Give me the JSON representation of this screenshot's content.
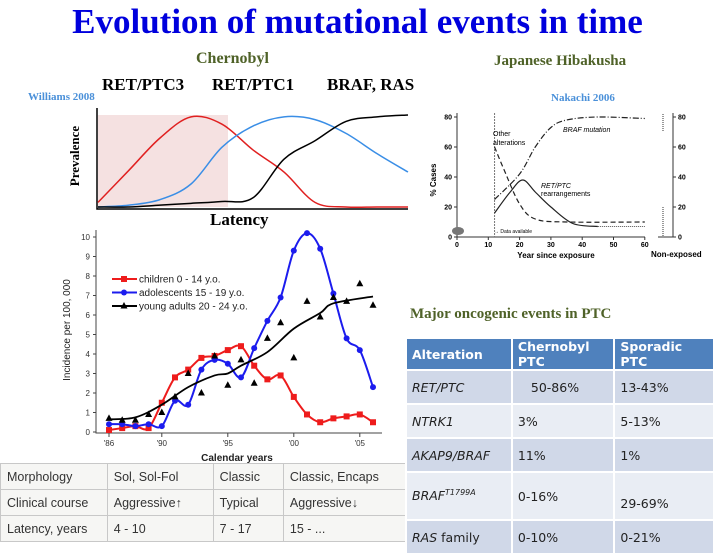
{
  "title": "Evolution of mutational events in time",
  "chernobyl": {
    "label": "Chernobyl",
    "genes": [
      "RET/PTC3",
      "RET/PTC1",
      "BRAF, RAS"
    ],
    "citation": "Williams 2008"
  },
  "japan": {
    "label": "Japanese Hibakusha",
    "citation": "Nakachi 2006"
  },
  "chart_data": [
    {
      "type": "line",
      "title": "",
      "xlabel": "Latency",
      "ylabel": "Prevalence",
      "shaded_region": "early latency (RET/PTC3 phase)",
      "x": [
        0,
        1,
        2,
        3,
        4,
        5,
        6,
        7,
        8,
        9,
        10
      ],
      "series": [
        {
          "name": "RET/PTC3",
          "color": "#e02020",
          "values": [
            0.05,
            0.4,
            0.75,
            0.98,
            0.9,
            0.62,
            0.38,
            0.05,
            0,
            0,
            0
          ]
        },
        {
          "name": "RET/PTC1",
          "color": "#3a8ee6",
          "values": [
            0,
            0.02,
            0.08,
            0.25,
            0.65,
            0.88,
            0.98,
            0.95,
            0.8,
            0.58,
            0.38
          ]
        },
        {
          "name": "BRAF, RAS",
          "color": "#000000",
          "values": [
            0,
            0,
            0.02,
            0.04,
            0.06,
            0.1,
            0.52,
            0.72,
            0.93,
            0.98,
            1.0
          ]
        }
      ]
    },
    {
      "type": "line",
      "title": "",
      "xlabel": "Year since exposure",
      "ylabel": "% Cases",
      "xlim": [
        0,
        60
      ],
      "ylim": [
        0,
        85
      ],
      "xticks": [
        0,
        10,
        20,
        30,
        40,
        50,
        60
      ],
      "yticks": [
        0,
        20,
        40,
        60,
        80
      ],
      "right_panel_label": "Non-exposed",
      "annotations": [
        "Other alterations",
        "BRAF mutation",
        "RET/PTC rearrangements",
        "Data available"
      ],
      "series": [
        {
          "name": "BRAF mutation",
          "style": "dash-dot",
          "x": [
            12,
            20,
            25,
            30,
            35,
            45,
            60
          ],
          "y": [
            25,
            42,
            60,
            73,
            78,
            80,
            79
          ]
        },
        {
          "name": "RET/PTC rearrangements",
          "style": "solid",
          "x": [
            12,
            17,
            21,
            25,
            30,
            37,
            45
          ],
          "y": [
            16,
            30,
            38,
            30,
            20,
            9,
            7
          ]
        },
        {
          "name": "Other alterations",
          "style": "dashed",
          "x": [
            12,
            15,
            20,
            25,
            35,
            60
          ],
          "y": [
            60,
            45,
            22,
            12,
            10,
            10
          ]
        }
      ],
      "non_exposed_ranges": [
        {
          "name": "BRAF mutation",
          "range": [
            70,
            82
          ]
        },
        {
          "name": "RET/PTC rearrangements",
          "range": [
            0,
            20
          ]
        }
      ]
    },
    {
      "type": "line",
      "title": "",
      "xlabel": "Calendar years",
      "ylabel": "Incidence per 100, 000",
      "xlim": [
        1986,
        2006
      ],
      "ylim": [
        0,
        10.5
      ],
      "xtick_labels": [
        "'86",
        "'90",
        "'95",
        "'00",
        "'05"
      ],
      "yticks": [
        0,
        1,
        2,
        3,
        4,
        5,
        6,
        7,
        8,
        9,
        10
      ],
      "legend": "top-left",
      "x": [
        1986,
        1987,
        1988,
        1989,
        1990,
        1991,
        1992,
        1993,
        1994,
        1995,
        1996,
        1997,
        1998,
        1999,
        2000,
        2001,
        2002,
        2003,
        2004,
        2005,
        2006
      ],
      "series": [
        {
          "name": "children 0 - 14 y.o.",
          "color": "#ee1c1c",
          "marker": "square",
          "values": [
            0.1,
            0.2,
            0.3,
            0.2,
            1.5,
            2.8,
            3.2,
            3.8,
            3.9,
            4.2,
            4.4,
            3.4,
            2.7,
            2.9,
            1.8,
            0.9,
            0.5,
            0.7,
            0.8,
            0.9,
            0.5
          ]
        },
        {
          "name": "adolescents 15 - 19 y.o.",
          "color": "#1c1cee",
          "marker": "circle",
          "values": [
            0.4,
            0.4,
            0.3,
            0.4,
            0.3,
            1.6,
            1.4,
            3.2,
            3.7,
            3.5,
            2.8,
            4.3,
            5.7,
            6.9,
            9.3,
            10.2,
            9.4,
            7.1,
            4.8,
            4.2,
            2.3
          ]
        },
        {
          "name": "young adults 20 - 24 y.o.",
          "color": "#000000",
          "marker": "triangle",
          "values": [
            0.7,
            0.6,
            0.6,
            0.9,
            1.0,
            1.8,
            3.0,
            2.0,
            3.9,
            2.4,
            3.7,
            2.5,
            4.8,
            5.6,
            3.8,
            6.7,
            5.9,
            6.9,
            6.7,
            7.6,
            6.5
          ],
          "trend": {
            "x": [
              1986,
              1988,
              1990,
              1992,
              1994,
              1995,
              1996,
              1998,
              2000,
              2002,
              2003,
              2006
            ],
            "y": [
              0.65,
              0.75,
              1.4,
              2.3,
              2.9,
              3.0,
              3.4,
              4.1,
              5.3,
              6.1,
              6.6,
              6.95
            ]
          }
        }
      ]
    }
  ],
  "latency_table": {
    "rows": [
      [
        "Morphology",
        "Sol, Sol-Fol",
        "Classic",
        "Classic, Encaps"
      ],
      [
        "Clinical course",
        "Aggressive↑",
        "Typical",
        "Aggressive↓"
      ],
      [
        "Latency, years",
        "4 - 10",
        "7 - 17",
        "15 - ..."
      ]
    ]
  },
  "ptc_table": {
    "title": "Major oncogenic events in PTC",
    "headers": [
      "Alteration",
      "Chernobyl PTC",
      "Sporadic PTC"
    ],
    "rows": [
      {
        "alteration": "RET/PTC",
        "sup": "",
        "rest": "",
        "chernobyl": "50-86%",
        "sporadic": "13-43%"
      },
      {
        "alteration": "NTRK1",
        "sup": "",
        "rest": "",
        "chernobyl": "3%",
        "sporadic": "5-13%"
      },
      {
        "alteration": "AKAP9/BRAF",
        "sup": "",
        "rest": "",
        "chernobyl": "11%",
        "sporadic": "1%"
      },
      {
        "alteration": "BRAF",
        "sup": "T1799A",
        "rest": "",
        "chernobyl": "0-16%",
        "sporadic": "29-69%"
      },
      {
        "alteration": "RAS",
        "sup": "",
        "rest": " family",
        "chernobyl": "0-10%",
        "sporadic": "0-21%"
      }
    ]
  }
}
